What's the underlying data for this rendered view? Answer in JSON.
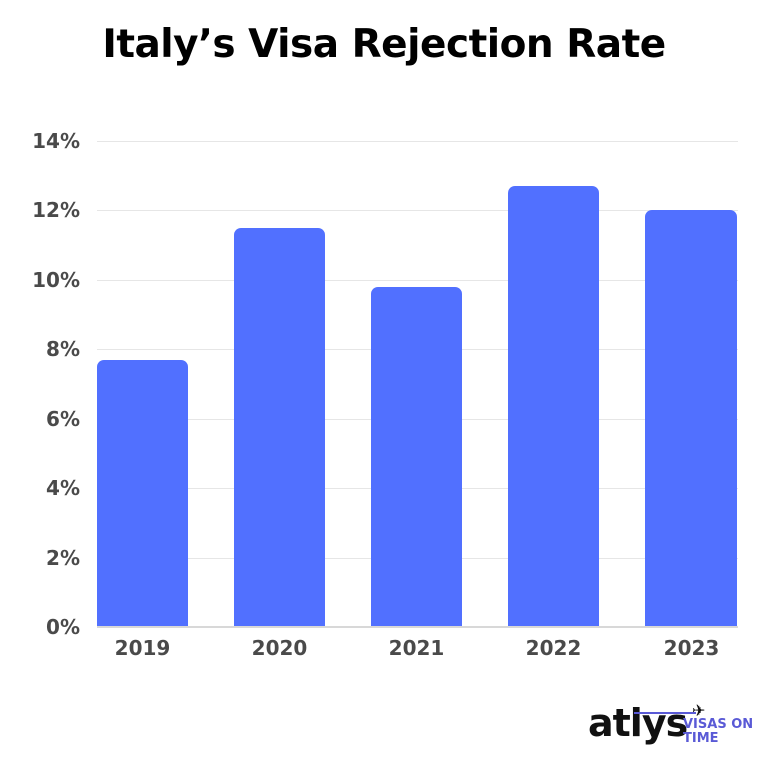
{
  "chart_data": {
    "type": "bar",
    "title": "Italy’s Visa Rejection Rate",
    "xlabel": "",
    "ylabel": "",
    "categories": [
      "2019",
      "2020",
      "2021",
      "2022",
      "2023"
    ],
    "values": [
      7.7,
      11.5,
      9.8,
      12.7,
      12.0
    ],
    "value_unit": "%",
    "ylim": [
      0,
      14
    ],
    "yticks": [
      "0%",
      "2%",
      "4%",
      "6%",
      "8%",
      "10%",
      "12%",
      "14%"
    ],
    "grid": true,
    "legend": null,
    "bar_color": "#5170ff"
  },
  "branding": {
    "wordmark": "atlys",
    "tagline_line1": "VISAS ON",
    "tagline_line2": "TIME",
    "accent_color": "#5a5ad6"
  }
}
